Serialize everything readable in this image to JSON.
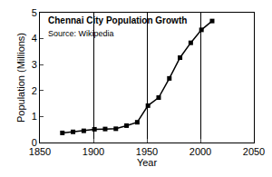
{
  "chart_data": {
    "type": "line",
    "title": "Chennai City Population Growth",
    "annotations": [
      "Source: Wikipedia"
    ],
    "x_label": "Year",
    "y_label": "Population (Millions)",
    "x": [
      1871,
      1881,
      1891,
      1901,
      1911,
      1921,
      1931,
      1941,
      1951,
      1961,
      1971,
      1981,
      1991,
      2001,
      2011
    ],
    "values": [
      0.37,
      0.41,
      0.45,
      0.51,
      0.52,
      0.53,
      0.65,
      0.78,
      1.42,
      1.73,
      2.47,
      3.27,
      3.84,
      4.34,
      4.68
    ],
    "color": "#000000",
    "marker": "square",
    "line_style": "solid",
    "xlim": [
      1850,
      2050
    ],
    "xticks": [
      1850,
      1900,
      1950,
      2000,
      2050
    ],
    "ylim": [
      0,
      5
    ],
    "yticks": [
      0,
      1,
      2,
      3,
      4,
      5
    ],
    "grid": true
  }
}
